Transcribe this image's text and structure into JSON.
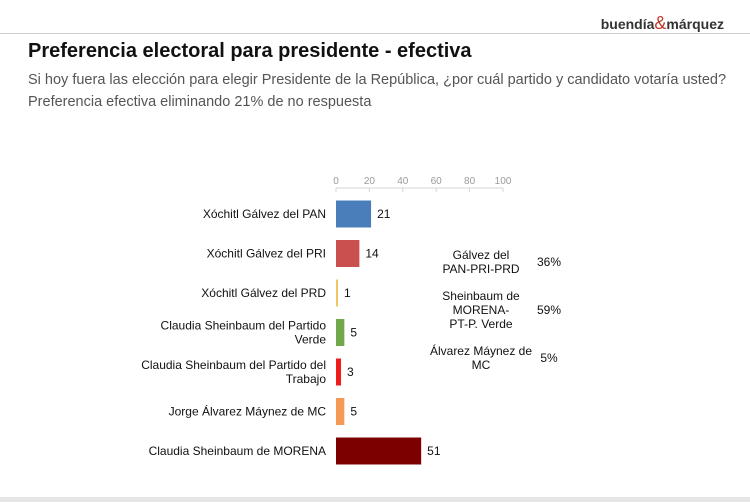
{
  "header": {
    "brand_left": "buendía",
    "brand_amp": "&",
    "brand_right": "márquez",
    "title": "Preferencia electoral para presidente - efectiva",
    "subtitle": "Si hoy fuera las elección para elegir Presidente de la República, ¿por cuál partido y candidato votaría usted?",
    "subtitle2": "Preferencia efectiva eliminando 21% de no respuesta"
  },
  "chart_data": {
    "type": "bar",
    "orientation": "horizontal",
    "categories": [
      [
        "Xóchitl Gálvez del PAN"
      ],
      [
        "Xóchitl Gálvez del PRI"
      ],
      [
        "Xóchitl Gálvez del PRD"
      ],
      [
        "Claudia Sheinbaum del Partido",
        "Verde"
      ],
      [
        "Claudia Sheinbaum del Partido del",
        "Trabajo"
      ],
      [
        "Jorge Álvarez Máynez de MC"
      ],
      [
        "Claudia Sheinbaum de MORENA"
      ]
    ],
    "values": [
      21,
      14,
      1,
      5,
      3,
      5,
      51
    ],
    "colors": [
      "#4a7ebb",
      "#c9504f",
      "#f2c464",
      "#71a84c",
      "#ee1c1c",
      "#f59a55",
      "#7d0000"
    ],
    "xlim": [
      0,
      100
    ],
    "ticks": [
      0,
      20,
      40,
      60,
      80,
      100
    ],
    "grid": false
  },
  "summary": [
    {
      "label": [
        "Gálvez del",
        "PAN-PRI-PRD"
      ],
      "value": "36%"
    },
    {
      "label": [
        "Sheinbaum de",
        "MORENA-",
        "PT-P. Verde"
      ],
      "value": "59%"
    },
    {
      "label": [
        "Álvarez Máynez de",
        "MC"
      ],
      "value": "5%"
    }
  ]
}
